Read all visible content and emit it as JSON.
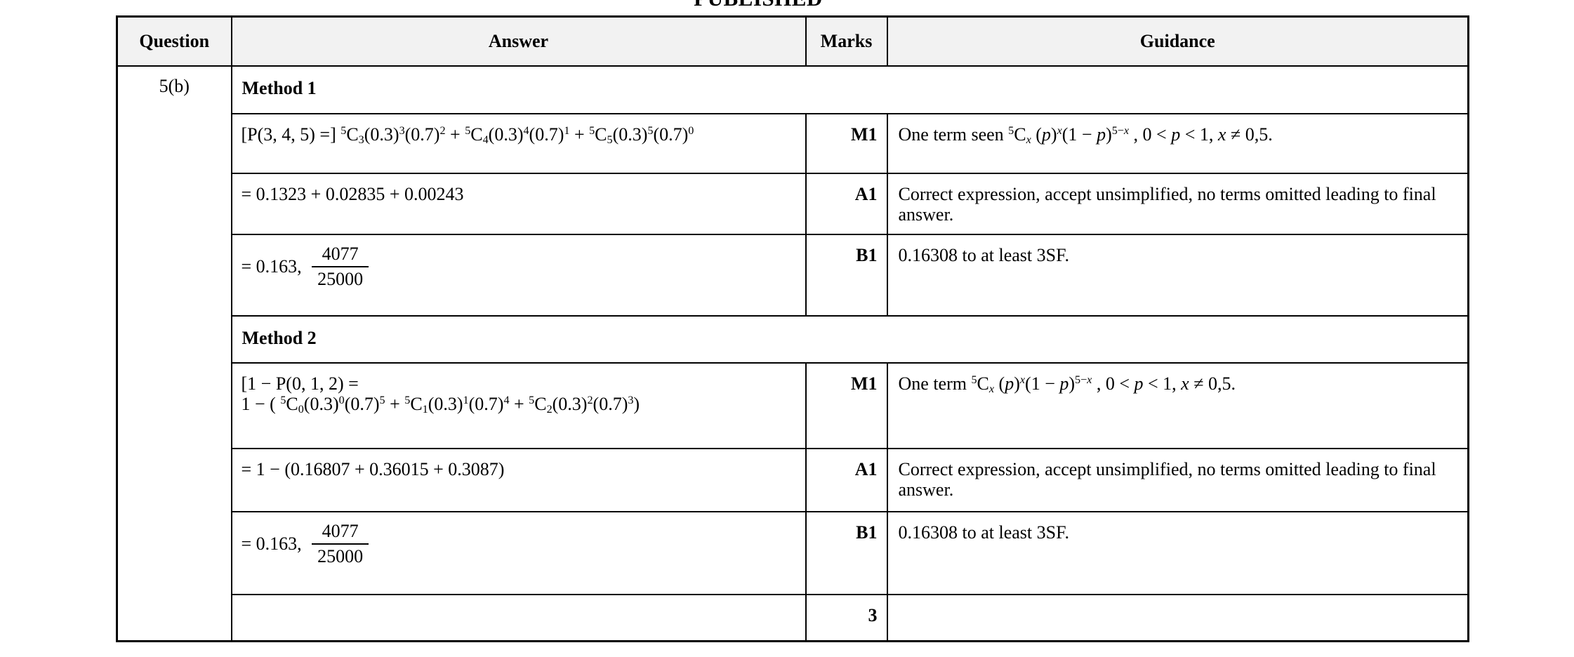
{
  "published_label": "PUBLISHED",
  "colors": {
    "header_bg": "#f2f2f2",
    "border": "#000000",
    "text": "#000000",
    "page_bg": "#ffffff"
  },
  "table": {
    "headers": {
      "question": "Question",
      "answer": "Answer",
      "marks": "Marks",
      "guidance": "Guidance"
    },
    "question_id": "5(b)",
    "method1_label": "Method 1",
    "method2_label": "Method 2",
    "rows": {
      "m1_m": {
        "answer": [
          {
            "t": "[P(3, 4, 5) =] "
          },
          {
            "t": "5",
            "sup": true
          },
          {
            "t": "C"
          },
          {
            "t": "3",
            "sub": true
          },
          {
            "t": "(0.3)"
          },
          {
            "t": "3",
            "sup": true
          },
          {
            "t": "(0.7)"
          },
          {
            "t": "2",
            "sup": true
          },
          {
            "t": " + "
          },
          {
            "t": "5",
            "sup": true
          },
          {
            "t": "C"
          },
          {
            "t": "4",
            "sub": true
          },
          {
            "t": "(0.3)"
          },
          {
            "t": "4",
            "sup": true
          },
          {
            "t": "(0.7)"
          },
          {
            "t": "1",
            "sup": true
          },
          {
            "t": " + "
          },
          {
            "t": "5",
            "sup": true
          },
          {
            "t": "C"
          },
          {
            "t": "5",
            "sub": true
          },
          {
            "t": "(0.3)"
          },
          {
            "t": "5",
            "sup": true
          },
          {
            "t": "(0.7)"
          },
          {
            "t": "0",
            "sup": true
          }
        ],
        "marks": "M1",
        "guidance": [
          {
            "t": "One term seen "
          },
          {
            "t": "5",
            "sup": true
          },
          {
            "t": "C"
          },
          {
            "t": "x",
            "sub": true,
            "i": true
          },
          {
            "t": " ("
          },
          {
            "t": "p",
            "i": true
          },
          {
            "t": ")"
          },
          {
            "t": "x",
            "sup": true,
            "i": true
          },
          {
            "t": "(1 − "
          },
          {
            "t": "p",
            "i": true
          },
          {
            "t": ")"
          },
          {
            "t": "5−",
            "sup": true
          },
          {
            "t": "x",
            "sup": true,
            "i": true
          },
          {
            "t": " , 0 < "
          },
          {
            "t": "p",
            "i": true
          },
          {
            "t": " < 1, "
          },
          {
            "t": "x",
            "i": true
          },
          {
            "t": " ≠ 0,5."
          }
        ]
      },
      "m1_a": {
        "answer": [
          {
            "t": "= 0.1323 + 0.02835 + 0.00243"
          }
        ],
        "marks": "A1",
        "guidance": "Correct expression, accept unsimplified, no terms omitted leading to final answer."
      },
      "m1_b": {
        "answer": [
          {
            "t": "= 0.163, "
          },
          {
            "frac": [
              "4077",
              "25000"
            ]
          }
        ],
        "marks": "B1",
        "guidance": "0.16308 to at least 3SF."
      },
      "m2_m": {
        "answer": [
          {
            "t": "[1 − P(0, 1, 2) ="
          },
          {
            "br": true
          },
          {
            "t": "1 − ( "
          },
          {
            "t": "5",
            "sup": true
          },
          {
            "t": "C"
          },
          {
            "t": "0",
            "sub": true
          },
          {
            "t": "(0.3)"
          },
          {
            "t": "0",
            "sup": true
          },
          {
            "t": "(0.7)"
          },
          {
            "t": "5",
            "sup": true
          },
          {
            "t": " + "
          },
          {
            "t": "5",
            "sup": true
          },
          {
            "t": "C"
          },
          {
            "t": "1",
            "sub": true
          },
          {
            "t": "(0.3)"
          },
          {
            "t": "1",
            "sup": true
          },
          {
            "t": "(0.7)"
          },
          {
            "t": "4",
            "sup": true
          },
          {
            "t": " + "
          },
          {
            "t": "5",
            "sup": true
          },
          {
            "t": "C"
          },
          {
            "t": "2",
            "sub": true
          },
          {
            "t": "(0.3)"
          },
          {
            "t": "2",
            "sup": true
          },
          {
            "t": "(0.7)"
          },
          {
            "t": "3",
            "sup": true
          },
          {
            "t": ")"
          }
        ],
        "marks": "M1",
        "guidance": [
          {
            "t": "One term "
          },
          {
            "t": "5",
            "sup": true
          },
          {
            "t": "C"
          },
          {
            "t": "x",
            "sub": true,
            "i": true
          },
          {
            "t": " ("
          },
          {
            "t": "p",
            "i": true
          },
          {
            "t": ")"
          },
          {
            "t": "x",
            "sup": true,
            "i": true
          },
          {
            "t": "(1 − "
          },
          {
            "t": "p",
            "i": true
          },
          {
            "t": ")"
          },
          {
            "t": "5−",
            "sup": true
          },
          {
            "t": "x",
            "sup": true,
            "i": true
          },
          {
            "t": " , 0 < "
          },
          {
            "t": "p",
            "i": true
          },
          {
            "t": " < 1, "
          },
          {
            "t": "x",
            "i": true
          },
          {
            "t": " ≠ 0,5."
          }
        ]
      },
      "m2_a": {
        "answer": [
          {
            "t": "= 1 − (0.16807 + 0.36015 + 0.3087)"
          }
        ],
        "marks": "A1",
        "guidance": "Correct expression, accept unsimplified, no terms omitted leading to final answer."
      },
      "m2_b": {
        "answer": [
          {
            "t": "= 0.163, "
          },
          {
            "frac": [
              "4077",
              "25000"
            ]
          }
        ],
        "marks": "B1",
        "guidance": "0.16308 to at least 3SF."
      },
      "total": {
        "marks": "3"
      }
    }
  }
}
